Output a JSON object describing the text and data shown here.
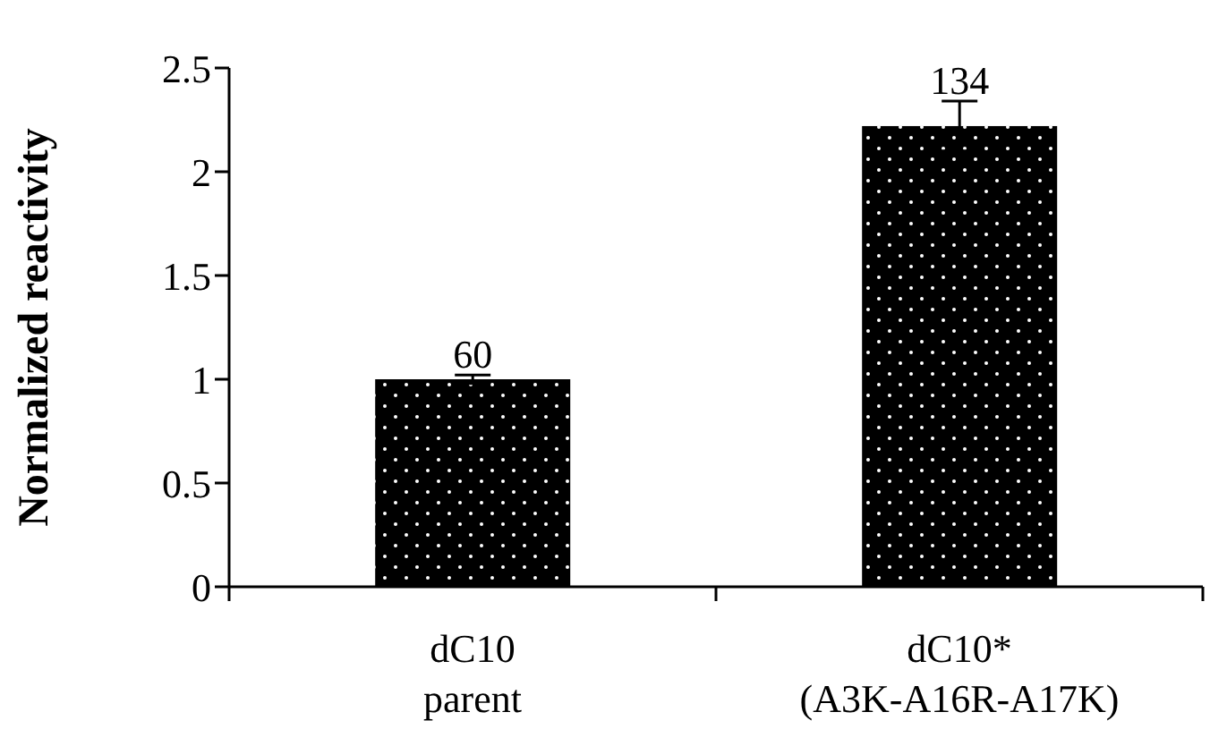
{
  "chart_data": {
    "type": "bar",
    "ylabel": "Normalized reactivity",
    "categories": [
      "dC10\nparent",
      "dC10*\n(A3K-A16R-A17K)"
    ],
    "values": [
      1.0,
      2.22
    ],
    "errors": [
      0.02,
      0.12
    ],
    "annotations": [
      {
        "text": "60",
        "x": "dC10\nparent",
        "y": 1.02
      },
      {
        "text": "134",
        "x": "dC10*\n(A3K-A16R-A17K)",
        "y": 2.34
      }
    ],
    "color": "#000000",
    "ylim": [
      0,
      2.5
    ],
    "yticks": [
      0,
      0.5,
      1,
      1.5,
      2,
      2.5
    ],
    "grid": false,
    "legend": false
  }
}
